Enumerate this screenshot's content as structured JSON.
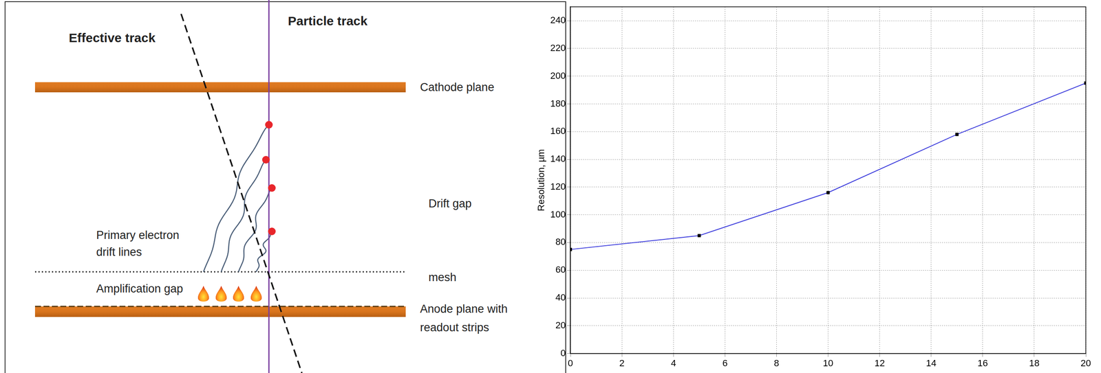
{
  "diagram": {
    "effective_track": "Effective track",
    "particle_track": "Particle track",
    "cathode": "Cathode plane",
    "drift_gap": "Drift gap",
    "mesh": "mesh",
    "amplification_gap": "Amplification gap",
    "drift_lines": [
      "Primary electron",
      "drift lines"
    ],
    "anode": [
      "Anode plane with",
      "readout strips"
    ]
  },
  "chart_data": {
    "type": "line",
    "ylabel": "Resolution, µm",
    "x": [
      0,
      5,
      10,
      15,
      20
    ],
    "values": [
      75,
      85,
      116,
      158,
      195
    ],
    "color": "#3c3cdc",
    "marker": "square",
    "xlim": [
      0,
      20
    ],
    "xticks": [
      0,
      2,
      4,
      6,
      8,
      10,
      12,
      14,
      16,
      18,
      20
    ],
    "ylim": [
      0,
      250
    ],
    "yticks": [
      0,
      20,
      40,
      60,
      80,
      100,
      120,
      140,
      160,
      180,
      200,
      220,
      240
    ],
    "grid": true
  }
}
